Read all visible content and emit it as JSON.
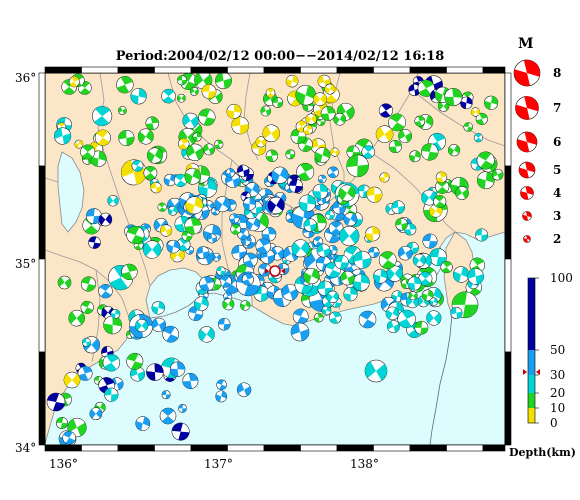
{
  "map": {
    "title": "Period:2004/02/12 00:00−−2014/02/12 16:18",
    "lat_labels": [
      "36°",
      "35°",
      "34°"
    ],
    "lon_labels": [
      "136°",
      "137°",
      "138°"
    ],
    "colors": {
      "land": "#fbe6c8",
      "sea": "#dcfcfd",
      "boundary": "#9a9a9a",
      "beachball_white": "#ffffff"
    }
  },
  "magnitude_legend": {
    "title": "M",
    "labels": [
      "8",
      "7",
      "6",
      "5",
      "4",
      "3",
      "2"
    ],
    "color": "#ff0000"
  },
  "depth_legend": {
    "title": "Depth(km)",
    "labels": [
      "100",
      "50",
      "30",
      "20",
      "10",
      "0"
    ],
    "bands": [
      {
        "from": 50,
        "to": 100,
        "color": "#0000a0"
      },
      {
        "from": 30,
        "to": 50,
        "color": "#1a9ff0"
      },
      {
        "from": 20,
        "to": 30,
        "color": "#00d4d4"
      },
      {
        "from": 10,
        "to": 20,
        "color": "#22d422"
      },
      {
        "from": 0,
        "to": 10,
        "color": "#f4e000"
      }
    ],
    "marker_color": "#cc0000"
  }
}
